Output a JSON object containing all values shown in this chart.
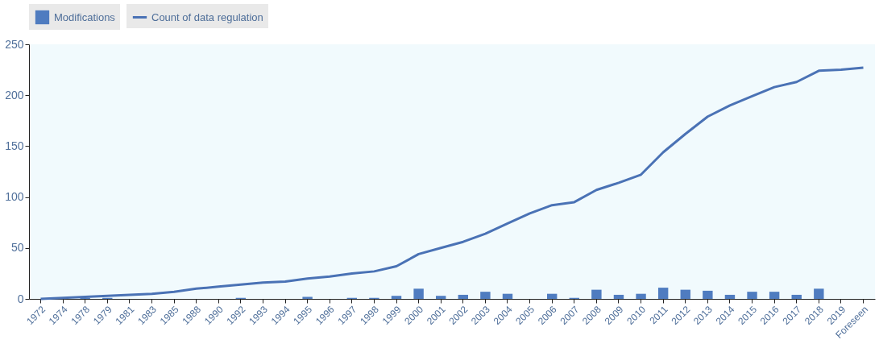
{
  "chart_data": {
    "type": "bar",
    "categories": [
      "1972",
      "1974",
      "1978",
      "1979",
      "1981",
      "1983",
      "1985",
      "1988",
      "1990",
      "1992",
      "1993",
      "1994",
      "1995",
      "1996",
      "1997",
      "1998",
      "1999",
      "2000",
      "2001",
      "2002",
      "2003",
      "2004",
      "2005",
      "2006",
      "2007",
      "2008",
      "2009",
      "2010",
      "2011",
      "2012",
      "2013",
      "2014",
      "2015",
      "2016",
      "2017",
      "2018",
      "2019",
      "Foreseen"
    ],
    "series": [
      {
        "name": "Modifications",
        "color": "#4f7cc0",
        "values": [
          0,
          1,
          1,
          1,
          0,
          0,
          0,
          0,
          0,
          1,
          0,
          0,
          2,
          0,
          1,
          1,
          3,
          10,
          3,
          4,
          7,
          5,
          0,
          5,
          1,
          9,
          4,
          5,
          11,
          9,
          8,
          4,
          7,
          7,
          4,
          10,
          0,
          0
        ]
      },
      {
        "name": "Count of data regulation",
        "type": "line",
        "color": "#4a72b5",
        "values": [
          0,
          1,
          2,
          3,
          4,
          5,
          7,
          10,
          12,
          14,
          16,
          17,
          20,
          22,
          25,
          27,
          32,
          44,
          50,
          56,
          64,
          74,
          84,
          92,
          95,
          107,
          114,
          122,
          144,
          162,
          179,
          190,
          199,
          208,
          213,
          224,
          225,
          227
        ]
      }
    ],
    "ylim": [
      0,
      250
    ],
    "yticks": [
      0,
      50,
      100,
      150,
      200,
      250
    ],
    "grid": false,
    "legend": "top"
  }
}
